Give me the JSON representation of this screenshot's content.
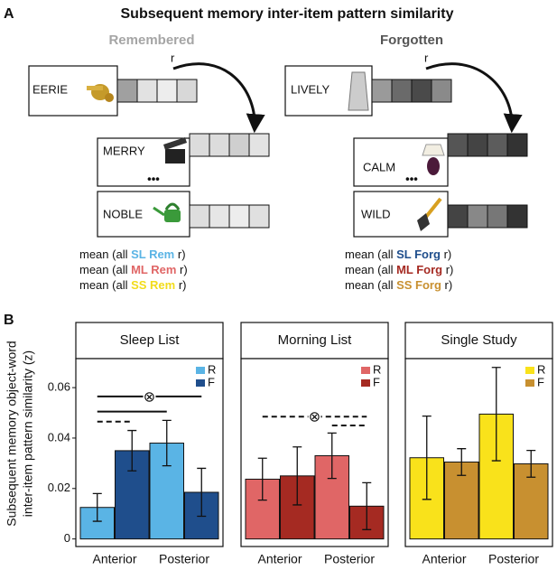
{
  "panel_a": {
    "label": "A",
    "title": "Subsequent memory inter-item pattern similarity",
    "left": {
      "heading": "Remembered",
      "r": "r",
      "words": [
        "EERIE",
        "MERRY",
        "NOBLE"
      ],
      "ellipsis": "•••",
      "formulas": [
        {
          "prefix": "mean (all ",
          "tag": "SL Rem",
          "suffix": " r)",
          "color": "#5ab4e5"
        },
        {
          "prefix": "mean (all ",
          "tag": "ML Rem",
          "suffix": " r)",
          "color": "#e06666"
        },
        {
          "prefix": "mean (all ",
          "tag": "SS Rem",
          "suffix": " r)",
          "color": "#f2dc1b"
        }
      ]
    },
    "right": {
      "heading": "Forgotten",
      "r": "r",
      "words": [
        "LIVELY",
        "CALM",
        "WILD"
      ],
      "ellipsis": "•••",
      "formulas": [
        {
          "prefix": "mean (all ",
          "tag": "SL Forg",
          "suffix": " r)",
          "color": "#1f4e8c"
        },
        {
          "prefix": "mean (all ",
          "tag": "ML Forg",
          "suffix": " r)",
          "color": "#a52a22"
        },
        {
          "prefix": "mean (all ",
          "tag": "SS Forg",
          "suffix": " r)",
          "color": "#c89030"
        }
      ]
    }
  },
  "panel_b": {
    "label": "B",
    "y_label": [
      "Subsequent memory object-word",
      "inter-item pattern similarity (z)"
    ]
  },
  "chart_data": [
    {
      "type": "bar",
      "title": "Sleep List",
      "categories": [
        "Anterior",
        "Posterior"
      ],
      "series": [
        {
          "name": "R",
          "color": "#5ab4e5",
          "values": [
            0.0125,
            0.038
          ],
          "errors": [
            0.0055,
            0.009
          ]
        },
        {
          "name": "F",
          "color": "#1f4e8c",
          "values": [
            0.035,
            0.0185
          ],
          "errors": [
            0.008,
            0.0095
          ]
        }
      ],
      "ylim": [
        -0.003,
        0.0715
      ],
      "yticks": [
        0,
        0.02,
        0.04,
        0.06
      ],
      "brackets": [
        {
          "from": 0,
          "to": 3,
          "y": 0.0565,
          "style": "solid",
          "symbol": "⊗"
        },
        {
          "from": 0,
          "to": 2,
          "y": 0.0505,
          "style": "solid"
        },
        {
          "from": 0,
          "to": 1,
          "y": 0.0465,
          "style": "dashed"
        }
      ]
    },
    {
      "type": "bar",
      "title": "Morning List",
      "categories": [
        "Anterior",
        "Posterior"
      ],
      "series": [
        {
          "name": "R",
          "color": "#e06666",
          "values": [
            0.0237,
            0.033
          ],
          "errors": [
            0.0083,
            0.009
          ]
        },
        {
          "name": "F",
          "color": "#a52a22",
          "values": [
            0.025,
            0.013
          ],
          "errors": [
            0.0115,
            0.0093
          ]
        }
      ],
      "ylim": [
        -0.003,
        0.0715
      ],
      "brackets": [
        {
          "from": 0,
          "to": 3,
          "y": 0.0485,
          "style": "dashed",
          "symbol": "⊗"
        },
        {
          "from": 2,
          "to": 3,
          "y": 0.045,
          "style": "dashed"
        }
      ]
    },
    {
      "type": "bar",
      "title": "Single Study",
      "categories": [
        "Anterior",
        "Posterior"
      ],
      "series": [
        {
          "name": "R",
          "color": "#f9e21b",
          "values": [
            0.0322,
            0.0495
          ],
          "errors": [
            0.0165,
            0.0185
          ]
        },
        {
          "name": "F",
          "color": "#c89030",
          "values": [
            0.0305,
            0.0298
          ],
          "errors": [
            0.0053,
            0.0053
          ]
        }
      ],
      "ylim": [
        -0.003,
        0.0715
      ]
    }
  ]
}
